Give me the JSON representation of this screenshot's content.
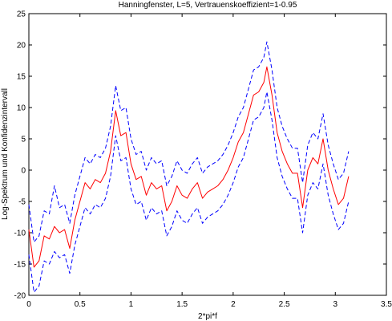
{
  "chart_data": {
    "type": "line",
    "title": "Hanningfenster,   L=5,   Vertrauenskoeffizient=1-0.95",
    "xlabel": "2*pi*f",
    "ylabel": "Log-Spektrum und Konfidenzintervall",
    "xlim": [
      0,
      3.5
    ],
    "ylim": [
      -20,
      25
    ],
    "xticks": [
      0,
      0.5,
      1,
      1.5,
      2,
      2.5,
      3,
      3.5
    ],
    "yticks": [
      -20,
      -15,
      -10,
      -5,
      0,
      5,
      10,
      15,
      20,
      25
    ],
    "xtick_labels": [
      "0",
      "0.5",
      "1",
      "1.5",
      "2",
      "2.5",
      "3",
      "3.5"
    ],
    "ytick_labels": [
      "-20",
      "-15",
      "-10",
      "-5",
      "0",
      "5",
      "10",
      "15",
      "20",
      "25"
    ],
    "grid": false,
    "series": [
      {
        "color": "#ff0000",
        "style": "solid",
        "x": [
          0.0,
          0.05,
          0.1,
          0.15,
          0.2,
          0.25,
          0.3,
          0.35,
          0.4,
          0.45,
          0.5,
          0.55,
          0.6,
          0.65,
          0.7,
          0.75,
          0.8,
          0.85,
          0.9,
          0.95,
          1.0,
          1.05,
          1.1,
          1.15,
          1.2,
          1.25,
          1.3,
          1.35,
          1.4,
          1.45,
          1.5,
          1.55,
          1.6,
          1.65,
          1.7,
          1.75,
          1.8,
          1.85,
          1.9,
          1.95,
          2.0,
          2.05,
          2.1,
          2.15,
          2.2,
          2.25,
          2.3,
          2.33,
          2.38,
          2.43,
          2.48,
          2.53,
          2.58,
          2.63,
          2.68,
          2.73,
          2.78,
          2.83,
          2.88,
          2.93,
          2.98,
          3.03,
          3.08,
          3.13
        ],
        "values": [
          -9.5,
          -15.5,
          -14.5,
          -10.5,
          -11,
          -9,
          -10,
          -9.5,
          -12.5,
          -8,
          -5,
          -2,
          -3,
          -1.5,
          -2,
          -0.5,
          3,
          9.5,
          5.5,
          6,
          1,
          -1.5,
          -1,
          -4,
          -2,
          -3,
          -2.5,
          -6.5,
          -5,
          -2.5,
          -4,
          -4.5,
          -3,
          -2,
          -4.5,
          -3.5,
          -3,
          -2.5,
          -1.5,
          0,
          2,
          4.5,
          6,
          9,
          12,
          12.5,
          14,
          16.5,
          12,
          6,
          3,
          1,
          -0.5,
          -0.5,
          -6,
          0,
          2,
          1,
          5,
          0,
          -3,
          -5.5,
          -4.5,
          -1
        ]
      },
      {
        "color": "#0000ff",
        "style": "dashed",
        "x": [
          0.0,
          0.05,
          0.1,
          0.15,
          0.2,
          0.25,
          0.3,
          0.35,
          0.4,
          0.45,
          0.5,
          0.55,
          0.6,
          0.65,
          0.7,
          0.75,
          0.8,
          0.85,
          0.9,
          0.95,
          1.0,
          1.05,
          1.1,
          1.15,
          1.2,
          1.25,
          1.3,
          1.35,
          1.4,
          1.45,
          1.5,
          1.55,
          1.6,
          1.65,
          1.7,
          1.75,
          1.8,
          1.85,
          1.9,
          1.95,
          2.0,
          2.05,
          2.1,
          2.15,
          2.2,
          2.25,
          2.3,
          2.33,
          2.38,
          2.43,
          2.48,
          2.53,
          2.58,
          2.63,
          2.68,
          2.73,
          2.78,
          2.83,
          2.88,
          2.93,
          2.98,
          3.03,
          3.08,
          3.13
        ],
        "values": [
          -5.5,
          -11.5,
          -10.5,
          -6.5,
          -7,
          -2.5,
          -6,
          -5.5,
          -8.5,
          -4,
          -1,
          2,
          1,
          2.5,
          2,
          3.5,
          7,
          13.5,
          9.5,
          10,
          5,
          2.5,
          3,
          0,
          2,
          1,
          1.5,
          -2.5,
          -1,
          1.5,
          0,
          -0.5,
          1,
          2,
          -0.5,
          0.5,
          1,
          1.5,
          2.5,
          4,
          6,
          8.5,
          10,
          13,
          16,
          16.5,
          18,
          20.5,
          16,
          10,
          7,
          5,
          3.5,
          3.5,
          -2,
          4,
          6,
          5,
          9,
          4,
          1,
          -1.5,
          -0.5,
          3
        ]
      },
      {
        "color": "#0000ff",
        "style": "dashed",
        "x": [
          0.0,
          0.05,
          0.1,
          0.15,
          0.2,
          0.25,
          0.3,
          0.35,
          0.4,
          0.45,
          0.5,
          0.55,
          0.6,
          0.65,
          0.7,
          0.75,
          0.8,
          0.85,
          0.9,
          0.95,
          1.0,
          1.05,
          1.1,
          1.15,
          1.2,
          1.25,
          1.3,
          1.35,
          1.4,
          1.45,
          1.5,
          1.55,
          1.6,
          1.65,
          1.7,
          1.75,
          1.8,
          1.85,
          1.9,
          1.95,
          2.0,
          2.05,
          2.1,
          2.15,
          2.2,
          2.25,
          2.3,
          2.33,
          2.38,
          2.43,
          2.48,
          2.53,
          2.58,
          2.63,
          2.68,
          2.73,
          2.78,
          2.83,
          2.88,
          2.93,
          2.98,
          3.03,
          3.08,
          3.13
        ],
        "values": [
          -13.5,
          -19.5,
          -18.5,
          -14.5,
          -15,
          -13,
          -14,
          -13.5,
          -16.5,
          -12,
          -9,
          -6,
          -7,
          -5.5,
          -6,
          -4.5,
          -1,
          5.5,
          1.5,
          2,
          -3,
          -5.5,
          -5,
          -8,
          -6,
          -7,
          -6.5,
          -10.5,
          -9,
          -6.5,
          -8,
          -8.5,
          -7,
          -6,
          -8.5,
          -7.5,
          -7,
          -6.5,
          -5.5,
          -4,
          -2,
          0.5,
          2,
          5,
          8,
          8.5,
          10,
          12.5,
          8,
          2,
          -1,
          -3,
          -4.5,
          -4.5,
          -10,
          -4,
          -2,
          -3,
          1,
          -4,
          -7,
          -9.5,
          -8.5,
          -5
        ]
      }
    ]
  }
}
